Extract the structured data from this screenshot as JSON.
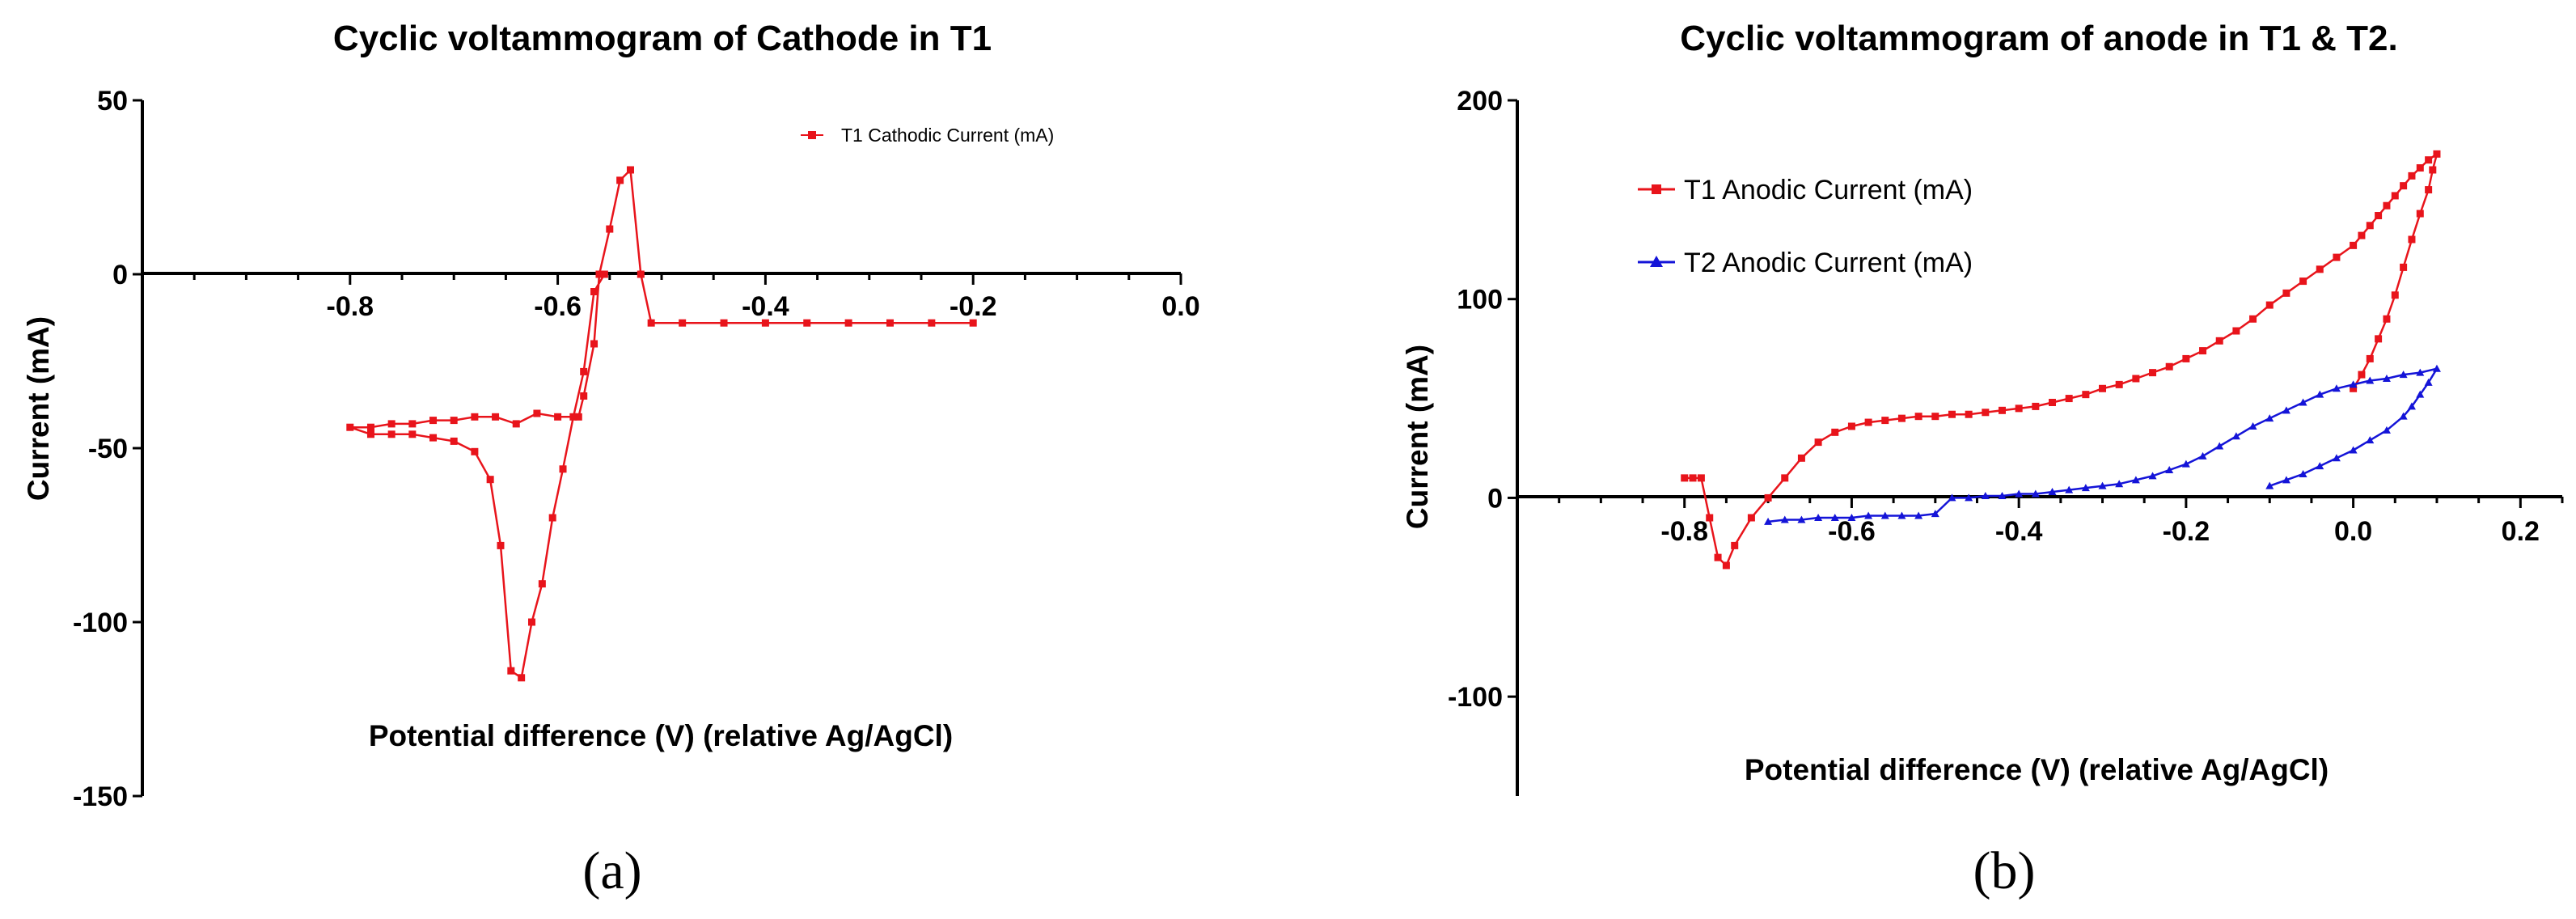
{
  "chart_data": [
    {
      "type": "line",
      "panel_label": "(a)",
      "title": "Cyclic voltammogram of Cathode in T1",
      "xlabel": "Potential difference (V) (relative Ag/AgCl)",
      "ylabel": "Current (mA)",
      "xlim": [
        -1.0,
        0.0
      ],
      "ylim": [
        -150,
        50
      ],
      "xticks": [
        -0.8,
        -0.6,
        -0.4,
        -0.2,
        0.0
      ],
      "xtick_labels": [
        "-0.8",
        "-0.6",
        "-0.4",
        "-0.2",
        "0.0"
      ],
      "yticks": [
        50,
        0,
        -50,
        -100,
        -150
      ],
      "ytick_labels": [
        "50",
        "0",
        "-50",
        "-100",
        "-150"
      ],
      "legend_position": "top-right",
      "series": [
        {
          "name": "T1 Cathodic Current (mA)",
          "color": "#e8141b",
          "marker": "square",
          "points": [
            [
              -0.2,
              -14
            ],
            [
              -0.24,
              -14
            ],
            [
              -0.28,
              -14
            ],
            [
              -0.32,
              -14
            ],
            [
              -0.36,
              -14
            ],
            [
              -0.4,
              -14
            ],
            [
              -0.44,
              -14
            ],
            [
              -0.48,
              -14
            ],
            [
              -0.51,
              -14
            ],
            [
              -0.52,
              0
            ],
            [
              -0.53,
              30
            ],
            [
              -0.54,
              27
            ],
            [
              -0.55,
              13
            ],
            [
              -0.56,
              0
            ],
            [
              -0.565,
              -20
            ],
            [
              -0.575,
              -35
            ],
            [
              -0.58,
              -41
            ],
            [
              -0.6,
              -41
            ],
            [
              -0.62,
              -40
            ],
            [
              -0.64,
              -43
            ],
            [
              -0.66,
              -41
            ],
            [
              -0.68,
              -41
            ],
            [
              -0.7,
              -42
            ],
            [
              -0.72,
              -42
            ],
            [
              -0.74,
              -43
            ],
            [
              -0.76,
              -43
            ],
            [
              -0.78,
              -44
            ],
            [
              -0.8,
              -44
            ],
            [
              -0.78,
              -46
            ],
            [
              -0.76,
              -46
            ],
            [
              -0.74,
              -46
            ],
            [
              -0.72,
              -47
            ],
            [
              -0.7,
              -48
            ],
            [
              -0.68,
              -51
            ],
            [
              -0.665,
              -59
            ],
            [
              -0.655,
              -78
            ],
            [
              -0.645,
              -114
            ],
            [
              -0.635,
              -116
            ],
            [
              -0.625,
              -100
            ],
            [
              -0.615,
              -89
            ],
            [
              -0.605,
              -70
            ],
            [
              -0.595,
              -56
            ],
            [
              -0.585,
              -41
            ],
            [
              -0.575,
              -28
            ],
            [
              -0.565,
              -5
            ],
            [
              -0.555,
              0
            ]
          ]
        }
      ]
    },
    {
      "type": "line",
      "panel_label": "(b)",
      "title": "Cyclic voltammogram of anode in T1 & T2.",
      "xlabel": "Potential difference (V) (relative Ag/AgCl)",
      "ylabel": "Current (mA)",
      "xlim": [
        -1.0,
        0.25
      ],
      "ylim": [
        -150,
        200
      ],
      "xticks": [
        -0.8,
        -0.6,
        -0.4,
        -0.2,
        0.0,
        0.2
      ],
      "xtick_labels": [
        "-0.8",
        "-0.6",
        "-0.4",
        "-0.2",
        "0.0",
        "0.2"
      ],
      "yticks": [
        200,
        100,
        0,
        -100
      ],
      "ytick_labels": [
        "200",
        "100",
        "0",
        "-100"
      ],
      "legend_position": "top-left",
      "series": [
        {
          "name": "T1 Anodic Current (mA)",
          "color": "#e8141b",
          "marker": "square",
          "points": [
            [
              0.0,
              55
            ],
            [
              0.01,
              62
            ],
            [
              0.02,
              70
            ],
            [
              0.03,
              80
            ],
            [
              0.04,
              90
            ],
            [
              0.05,
              102
            ],
            [
              0.06,
              116
            ],
            [
              0.07,
              130
            ],
            [
              0.08,
              143
            ],
            [
              0.09,
              155
            ],
            [
              0.095,
              165
            ],
            [
              0.1,
              173
            ],
            [
              0.09,
              170
            ],
            [
              0.08,
              166
            ],
            [
              0.07,
              162
            ],
            [
              0.06,
              157
            ],
            [
              0.05,
              152
            ],
            [
              0.04,
              147
            ],
            [
              0.03,
              142
            ],
            [
              0.02,
              137
            ],
            [
              0.01,
              132
            ],
            [
              0.0,
              127
            ],
            [
              -0.02,
              121
            ],
            [
              -0.04,
              115
            ],
            [
              -0.06,
              109
            ],
            [
              -0.08,
              103
            ],
            [
              -0.1,
              97
            ],
            [
              -0.12,
              90
            ],
            [
              -0.14,
              84
            ],
            [
              -0.16,
              79
            ],
            [
              -0.18,
              74
            ],
            [
              -0.2,
              70
            ],
            [
              -0.22,
              66
            ],
            [
              -0.24,
              63
            ],
            [
              -0.26,
              60
            ],
            [
              -0.28,
              57
            ],
            [
              -0.3,
              55
            ],
            [
              -0.32,
              52
            ],
            [
              -0.34,
              50
            ],
            [
              -0.36,
              48
            ],
            [
              -0.38,
              46
            ],
            [
              -0.4,
              45
            ],
            [
              -0.42,
              44
            ],
            [
              -0.44,
              43
            ],
            [
              -0.46,
              42
            ],
            [
              -0.48,
              42
            ],
            [
              -0.5,
              41
            ],
            [
              -0.52,
              41
            ],
            [
              -0.54,
              40
            ],
            [
              -0.56,
              39
            ],
            [
              -0.58,
              38
            ],
            [
              -0.6,
              36
            ],
            [
              -0.62,
              33
            ],
            [
              -0.64,
              28
            ],
            [
              -0.66,
              20
            ],
            [
              -0.68,
              10
            ],
            [
              -0.7,
              0
            ],
            [
              -0.72,
              -10
            ],
            [
              -0.74,
              -24
            ],
            [
              -0.75,
              -34
            ],
            [
              -0.76,
              -30
            ],
            [
              -0.77,
              -10
            ],
            [
              -0.78,
              10
            ],
            [
              -0.79,
              10
            ],
            [
              -0.8,
              10
            ]
          ]
        },
        {
          "name": "T2 Anodic Current (mA)",
          "color": "#1414d8",
          "marker": "triangle",
          "points": [
            [
              -0.1,
              6
            ],
            [
              -0.08,
              9
            ],
            [
              -0.06,
              12
            ],
            [
              -0.04,
              16
            ],
            [
              -0.02,
              20
            ],
            [
              0.0,
              24
            ],
            [
              0.02,
              29
            ],
            [
              0.04,
              34
            ],
            [
              0.06,
              41
            ],
            [
              0.07,
              46
            ],
            [
              0.08,
              52
            ],
            [
              0.09,
              58
            ],
            [
              0.1,
              65
            ],
            [
              0.08,
              63
            ],
            [
              0.06,
              62
            ],
            [
              0.04,
              60
            ],
            [
              0.02,
              59
            ],
            [
              0.0,
              57
            ],
            [
              -0.02,
              55
            ],
            [
              -0.04,
              52
            ],
            [
              -0.06,
              48
            ],
            [
              -0.08,
              44
            ],
            [
              -0.1,
              40
            ],
            [
              -0.12,
              36
            ],
            [
              -0.14,
              31
            ],
            [
              -0.16,
              26
            ],
            [
              -0.18,
              21
            ],
            [
              -0.2,
              17
            ],
            [
              -0.22,
              14
            ],
            [
              -0.24,
              11
            ],
            [
              -0.26,
              9
            ],
            [
              -0.28,
              7
            ],
            [
              -0.3,
              6
            ],
            [
              -0.32,
              5
            ],
            [
              -0.34,
              4
            ],
            [
              -0.36,
              3
            ],
            [
              -0.38,
              2
            ],
            [
              -0.4,
              2
            ],
            [
              -0.42,
              1
            ],
            [
              -0.44,
              1
            ],
            [
              -0.46,
              0
            ],
            [
              -0.48,
              0
            ],
            [
              -0.5,
              -8
            ],
            [
              -0.52,
              -9
            ],
            [
              -0.54,
              -9
            ],
            [
              -0.56,
              -9
            ],
            [
              -0.58,
              -9
            ],
            [
              -0.6,
              -10
            ],
            [
              -0.62,
              -10
            ],
            [
              -0.64,
              -10
            ],
            [
              -0.66,
              -11
            ],
            [
              -0.68,
              -11
            ],
            [
              -0.7,
              -12
            ]
          ]
        }
      ]
    }
  ]
}
